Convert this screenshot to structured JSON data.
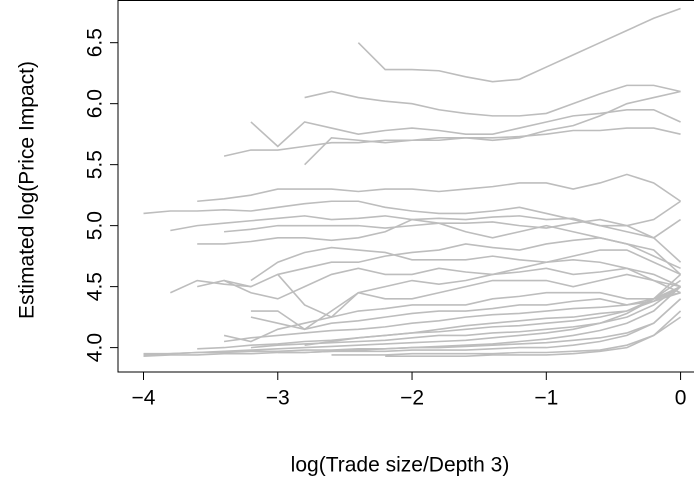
{
  "chart_data": {
    "type": "line",
    "x_label": "log(Trade size/Depth 3)",
    "y_label": "Estimated log(Price Impact)",
    "color": "#bdbdbd",
    "xlim": [
      -4.19,
      0.1
    ],
    "ylim": [
      3.8,
      6.85
    ],
    "xticks": [
      {
        "value": -4,
        "label": "−4"
      },
      {
        "value": -3,
        "label": "−3"
      },
      {
        "value": -2,
        "label": "−2"
      },
      {
        "value": -1,
        "label": "−1"
      },
      0
    ],
    "yticks": [
      {
        "value": 4,
        "label": "4.0"
      },
      4.5,
      {
        "value": 5,
        "label": "5.0"
      },
      5.5,
      {
        "value": 6,
        "label": "6.0"
      },
      6.5
    ],
    "x": [
      -4.0,
      -3.8,
      -3.6,
      -3.4,
      -3.2,
      -3.0,
      -2.8,
      -2.6,
      -2.4,
      -2.2,
      -2.0,
      -1.8,
      -1.6,
      -1.4,
      -1.2,
      -1.0,
      -0.8,
      -0.6,
      -0.4,
      -0.2,
      0.0
    ],
    "series": [
      {
        "values": [
          null,
          null,
          null,
          null,
          null,
          null,
          null,
          null,
          6.5,
          6.28,
          6.28,
          6.27,
          6.22,
          6.18,
          6.2,
          6.3,
          6.4,
          6.5,
          6.6,
          6.7,
          6.78
        ]
      },
      {
        "values": [
          null,
          null,
          null,
          null,
          null,
          null,
          6.05,
          6.1,
          6.05,
          6.02,
          6.0,
          5.95,
          5.92,
          5.9,
          5.9,
          5.92,
          6.0,
          6.08,
          6.15,
          6.15,
          6.1
        ]
      },
      {
        "values": [
          null,
          null,
          null,
          null,
          5.85,
          5.65,
          5.85,
          5.8,
          5.75,
          5.78,
          5.8,
          5.78,
          5.75,
          5.75,
          5.8,
          5.85,
          5.9,
          5.92,
          5.95,
          5.95,
          5.85
        ]
      },
      {
        "values": [
          null,
          null,
          null,
          5.57,
          5.62,
          5.62,
          5.65,
          5.68,
          5.68,
          5.7,
          5.7,
          5.72,
          5.72,
          5.72,
          5.73,
          5.75,
          5.78,
          5.78,
          5.8,
          5.8,
          5.75
        ]
      },
      {
        "values": [
          null,
          null,
          null,
          null,
          null,
          null,
          5.5,
          5.72,
          5.7,
          5.68,
          5.7,
          5.7,
          5.72,
          5.7,
          5.72,
          5.78,
          5.82,
          5.9,
          6.0,
          6.05,
          6.1
        ]
      },
      {
        "values": [
          5.1,
          5.12,
          5.12,
          5.13,
          5.12,
          5.15,
          5.18,
          5.2,
          5.2,
          5.15,
          5.12,
          5.1,
          5.1,
          5.12,
          5.15,
          5.1,
          5.05,
          5.0,
          5.0,
          5.05,
          5.2
        ]
      },
      {
        "values": [
          null,
          null,
          5.2,
          5.22,
          5.25,
          5.3,
          5.3,
          5.3,
          5.28,
          5.3,
          5.3,
          5.28,
          5.3,
          5.32,
          5.35,
          5.35,
          5.3,
          5.35,
          5.42,
          5.35,
          5.2
        ]
      },
      {
        "values": [
          null,
          4.96,
          5.0,
          5.02,
          5.04,
          5.06,
          5.08,
          5.05,
          5.06,
          5.08,
          5.05,
          5.06,
          5.05,
          5.07,
          5.08,
          5.05,
          5.06,
          5.0,
          4.95,
          4.9,
          5.05
        ]
      },
      {
        "values": [
          null,
          null,
          null,
          4.95,
          4.97,
          5.0,
          5.0,
          5.0,
          5.0,
          4.98,
          5.0,
          5.02,
          5.02,
          5.03,
          5.0,
          4.98,
          5.02,
          5.05,
          5.0,
          4.9,
          4.7
        ]
      },
      {
        "values": [
          null,
          null,
          4.85,
          4.85,
          4.87,
          4.9,
          4.9,
          4.88,
          4.9,
          4.95,
          5.05,
          5.02,
          4.95,
          4.9,
          4.95,
          5.0,
          4.95,
          4.9,
          4.85,
          4.8,
          4.6
        ]
      },
      {
        "values": [
          null,
          null,
          null,
          null,
          4.55,
          4.7,
          4.78,
          4.82,
          4.8,
          4.78,
          4.72,
          4.72,
          4.72,
          4.75,
          4.72,
          4.7,
          4.75,
          4.8,
          4.8,
          4.7,
          4.6
        ]
      },
      {
        "values": [
          null,
          null,
          4.5,
          4.55,
          4.45,
          4.4,
          4.5,
          4.6,
          4.65,
          4.6,
          4.6,
          4.65,
          4.62,
          4.6,
          4.62,
          4.65,
          4.6,
          4.62,
          4.65,
          4.55,
          4.45
        ]
      },
      {
        "values": [
          null,
          null,
          null,
          null,
          null,
          4.6,
          4.35,
          4.25,
          4.45,
          4.5,
          4.55,
          4.52,
          4.55,
          4.6,
          4.65,
          4.7,
          4.72,
          4.7,
          4.65,
          4.6,
          4.5
        ]
      },
      {
        "values": [
          null,
          null,
          null,
          null,
          4.3,
          4.3,
          4.15,
          4.3,
          4.45,
          4.4,
          4.4,
          4.45,
          4.5,
          4.55,
          4.55,
          4.55,
          4.5,
          4.55,
          4.6,
          4.55,
          4.5
        ]
      },
      {
        "values": [
          null,
          null,
          null,
          4.1,
          4.05,
          4.15,
          4.2,
          4.25,
          4.3,
          4.32,
          4.35,
          4.35,
          4.35,
          4.4,
          4.42,
          4.45,
          4.45,
          4.45,
          4.4,
          4.4,
          4.45
        ]
      },
      {
        "values": [
          null,
          null,
          null,
          null,
          4.25,
          4.2,
          4.15,
          4.2,
          4.22,
          4.25,
          4.28,
          4.3,
          4.3,
          4.32,
          4.35,
          4.35,
          4.38,
          4.4,
          4.35,
          4.38,
          4.45
        ]
      },
      {
        "values": [
          null,
          null,
          null,
          4.05,
          4.08,
          4.1,
          4.12,
          4.14,
          4.15,
          4.17,
          4.2,
          4.22,
          4.25,
          4.27,
          4.28,
          4.3,
          4.32,
          4.33,
          4.35,
          4.4,
          4.5
        ]
      },
      {
        "values": [
          3.94,
          3.95,
          3.96,
          3.97,
          3.98,
          3.99,
          4.0,
          4.01,
          4.02,
          4.03,
          4.04,
          4.05,
          4.06,
          4.08,
          4.1,
          4.12,
          4.15,
          4.2,
          4.28,
          4.4,
          4.6
        ]
      },
      {
        "values": [
          3.93,
          3.94,
          3.94,
          3.95,
          3.95,
          3.96,
          3.96,
          3.97,
          3.98,
          3.99,
          4.0,
          4.01,
          4.02,
          4.03,
          4.05,
          4.07,
          4.1,
          4.14,
          4.2,
          4.3,
          4.5
        ]
      },
      {
        "values": [
          3.95,
          3.95,
          3.96,
          3.96,
          3.97,
          3.97,
          3.98,
          3.98,
          3.99,
          3.99,
          4.0,
          4.0,
          4.01,
          4.02,
          4.03,
          4.04,
          4.06,
          4.08,
          4.12,
          4.2,
          4.4
        ]
      },
      {
        "values": [
          null,
          null,
          3.99,
          4.0,
          4.02,
          4.03,
          4.05,
          4.06,
          4.08,
          4.1,
          4.12,
          4.13,
          4.15,
          4.17,
          4.18,
          4.2,
          4.22,
          4.25,
          4.3,
          4.4,
          4.55
        ]
      },
      {
        "values": [
          null,
          null,
          null,
          null,
          null,
          3.96,
          3.96,
          3.97,
          3.97,
          3.97,
          3.98,
          3.98,
          3.98,
          3.99,
          4.0,
          4.0,
          4.02,
          4.05,
          4.1,
          4.2,
          4.4
        ]
      },
      {
        "values": [
          null,
          null,
          null,
          null,
          null,
          null,
          null,
          3.94,
          3.94,
          3.94,
          3.95,
          3.95,
          3.95,
          3.95,
          3.96,
          3.96,
          3.97,
          3.98,
          4.02,
          4.1,
          4.3
        ]
      },
      {
        "values": [
          null,
          null,
          null,
          null,
          4.0,
          4.02,
          4.03,
          4.04,
          4.05,
          4.06,
          4.08,
          4.1,
          4.1,
          4.12,
          4.13,
          4.15,
          4.17,
          4.2,
          4.25,
          4.35,
          4.5
        ]
      },
      {
        "values": [
          null,
          null,
          null,
          null,
          null,
          null,
          null,
          null,
          null,
          3.93,
          3.93,
          3.93,
          3.93,
          3.94,
          3.94,
          3.94,
          3.95,
          3.97,
          4.0,
          4.1,
          4.25
        ]
      },
      {
        "values": [
          null,
          null,
          null,
          null,
          null,
          null,
          4.02,
          4.05,
          4.08,
          4.1,
          4.12,
          4.15,
          4.18,
          4.2,
          4.22,
          4.24,
          4.25,
          4.28,
          4.3,
          4.38,
          4.5
        ]
      },
      {
        "values": [
          null,
          null,
          null,
          4.55,
          4.5,
          4.6,
          4.65,
          4.7,
          4.7,
          4.75,
          4.78,
          4.8,
          4.85,
          4.82,
          4.8,
          4.85,
          4.88,
          4.9,
          4.85,
          4.75,
          4.65
        ]
      },
      {
        "values": [
          null,
          4.45,
          4.55,
          4.52,
          4.5,
          null,
          null,
          null,
          null,
          null,
          null,
          null,
          null,
          null,
          null,
          null,
          null,
          null,
          null,
          null,
          null
        ]
      }
    ]
  }
}
